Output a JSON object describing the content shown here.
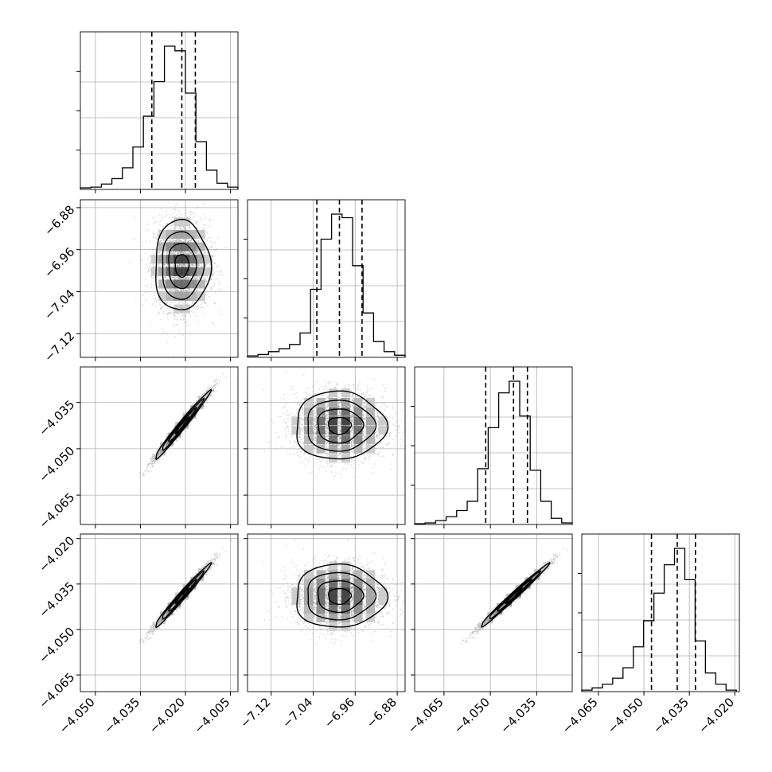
{
  "chart_data": {
    "type": "corner",
    "n_params": 4,
    "grid": true,
    "hist_style": "step",
    "quantile_line_style": "dashed",
    "colors": {
      "line": "#000000",
      "grid": "#b0b0b0",
      "points": "#9a9a9a",
      "density": "#000000"
    },
    "axes": [
      {
        "range": [
          -4.055,
          -4.0025
        ],
        "ticks": [
          -4.05,
          -4.035,
          -4.02,
          -4.005
        ],
        "tick_labels": [
          "−4.050",
          "−4.035",
          "−4.020",
          "−4.005"
        ]
      },
      {
        "range": [
          -7.165,
          -6.865
        ],
        "ticks": [
          -7.12,
          -7.04,
          -6.96,
          -6.88
        ],
        "tick_labels": [
          "−7.12",
          "−7.04",
          "−6.96",
          "−6.88"
        ]
      },
      {
        "range": [
          -4.0745,
          -4.0235
        ],
        "ticks": [
          -4.065,
          -4.05,
          -4.035
        ],
        "tick_labels": [
          "−4.065",
          "−4.050",
          "−4.035"
        ]
      },
      {
        "range": [
          -4.0705,
          -4.0185
        ],
        "ticks": [
          -4.065,
          -4.05,
          -4.035,
          -4.02
        ],
        "tick_labels": [
          "−4.065",
          "−4.050",
          "−4.035",
          "−4.020"
        ]
      }
    ],
    "marginals": [
      {
        "param": 0,
        "quantiles": [
          -4.0312,
          -4.0212,
          -4.0167
        ],
        "median": -4.0212,
        "std": 0.0046,
        "bin_edges": [
          -4.055,
          -4.0515,
          -4.048,
          -4.0445,
          -4.041,
          -4.0375,
          -4.034,
          -4.0305,
          -4.027,
          -4.0235,
          -4.02,
          -4.0165,
          -4.013,
          -4.0095,
          -4.006,
          -4.0025
        ],
        "counts": [
          2,
          3,
          7,
          14,
          28,
          55,
          95,
          140,
          186,
          180,
          125,
          62,
          25,
          8,
          3
        ]
      },
      {
        "param": 1,
        "quantiles": [
          -7.033,
          -6.99,
          -6.947
        ],
        "median": -6.99,
        "std": 0.043,
        "bin_edges": [
          -7.165,
          -7.145,
          -7.125,
          -7.105,
          -7.085,
          -7.065,
          -7.045,
          -7.025,
          -7.005,
          -6.985,
          -6.965,
          -6.945,
          -6.925,
          -6.905,
          -6.885,
          -6.865
        ],
        "counts": [
          2,
          4,
          8,
          12,
          18,
          34,
          95,
          165,
          200,
          195,
          128,
          62,
          22,
          8,
          3
        ]
      },
      {
        "param": 2,
        "quantiles": [
          -4.0515,
          -4.0425,
          -4.038
        ],
        "median": -4.0425,
        "std": 0.0055,
        "bin_edges": [
          -4.0745,
          -4.0711,
          -4.0677,
          -4.0643,
          -4.0609,
          -4.0575,
          -4.0541,
          -4.0507,
          -4.0473,
          -4.0439,
          -4.0405,
          -4.0371,
          -4.0337,
          -4.0303,
          -4.0269,
          -4.0235
        ],
        "counts": [
          1,
          2,
          5,
          10,
          18,
          30,
          72,
          125,
          170,
          185,
          140,
          70,
          30,
          8,
          2
        ]
      },
      {
        "param": 3,
        "quantiles": [
          -4.0475,
          -4.039,
          -4.033
        ],
        "median": -4.039,
        "std": 0.0052,
        "bin_edges": [
          -4.0705,
          -4.0671,
          -4.0637,
          -4.0603,
          -4.0569,
          -4.0535,
          -4.0501,
          -4.0467,
          -4.0433,
          -4.0399,
          -4.0365,
          -4.0331,
          -4.0297,
          -4.0263,
          -4.0229,
          -4.0195
        ],
        "counts": [
          2,
          5,
          10,
          18,
          32,
          60,
          95,
          132,
          170,
          192,
          150,
          68,
          25,
          10,
          2
        ]
      }
    ],
    "pairs": [
      {
        "x": 0,
        "y": 1,
        "center": [
          -4.0212,
          -6.99
        ],
        "std": [
          0.0046,
          0.043
        ],
        "corr": 0.0
      },
      {
        "x": 0,
        "y": 2,
        "center": [
          -4.0212,
          -4.0425
        ],
        "std": [
          0.0046,
          0.0055
        ],
        "corr": 0.985
      },
      {
        "x": 1,
        "y": 2,
        "center": [
          -6.99,
          -4.0425
        ],
        "std": [
          0.043,
          0.0055
        ],
        "corr": 0.0
      },
      {
        "x": 0,
        "y": 3,
        "center": [
          -4.0212,
          -4.039
        ],
        "std": [
          0.0046,
          0.0052
        ],
        "corr": 0.985
      },
      {
        "x": 1,
        "y": 3,
        "center": [
          -6.99,
          -4.039
        ],
        "std": [
          0.043,
          0.0052
        ],
        "corr": 0.0
      },
      {
        "x": 2,
        "y": 3,
        "center": [
          -4.0425,
          -4.039
        ],
        "std": [
          0.0055,
          0.0052
        ],
        "corr": 0.99
      }
    ]
  }
}
